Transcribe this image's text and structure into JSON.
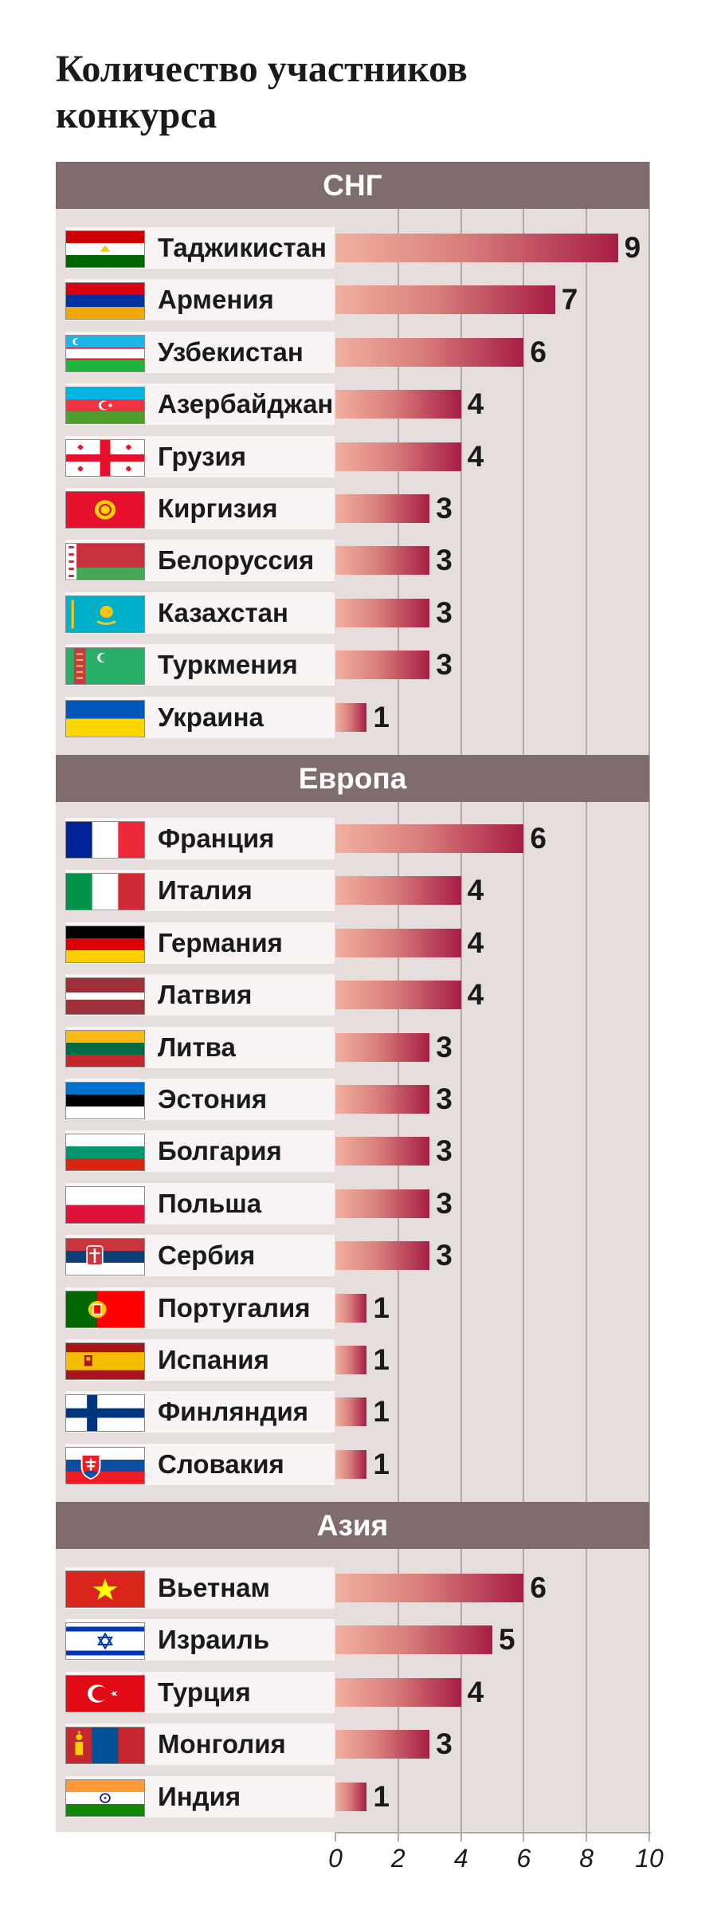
{
  "chart_data": {
    "type": "bar",
    "orientation": "horizontal",
    "title": "Количество участников конкурса",
    "xlim": [
      0,
      10
    ],
    "xticks": [
      "0",
      "2",
      "4",
      "6",
      "8",
      "10"
    ],
    "grid": true,
    "colors": {
      "bar_start": "#f1b09f",
      "bar_end": "#a71e44",
      "header": "#7f6d6d",
      "panel": "#e6dedd"
    },
    "groups": [
      {
        "name": "СНГ",
        "items": [
          {
            "country": "Таджикистан",
            "value": 9,
            "flag": "tajikistan-flag"
          },
          {
            "country": "Армения",
            "value": 7,
            "flag": "armenia-flag"
          },
          {
            "country": "Узбекистан",
            "value": 6,
            "flag": "uzbekistan-flag"
          },
          {
            "country": "Азербайджан",
            "value": 4,
            "flag": "azerbaijan-flag"
          },
          {
            "country": "Грузия",
            "value": 4,
            "flag": "georgia-flag"
          },
          {
            "country": "Киргизия",
            "value": 3,
            "flag": "kyrgyzstan-flag"
          },
          {
            "country": "Белоруссия",
            "value": 3,
            "flag": "belarus-flag"
          },
          {
            "country": "Казахстан",
            "value": 3,
            "flag": "kazakhstan-flag"
          },
          {
            "country": "Туркмения",
            "value": 3,
            "flag": "turkmenistan-flag"
          },
          {
            "country": "Украина",
            "value": 1,
            "flag": "ukraine-flag"
          }
        ]
      },
      {
        "name": "Европа",
        "items": [
          {
            "country": "Франция",
            "value": 6,
            "flag": "france-flag"
          },
          {
            "country": "Италия",
            "value": 4,
            "flag": "italy-flag"
          },
          {
            "country": "Германия",
            "value": 4,
            "flag": "germany-flag"
          },
          {
            "country": "Латвия",
            "value": 4,
            "flag": "latvia-flag"
          },
          {
            "country": "Литва",
            "value": 3,
            "flag": "lithuania-flag"
          },
          {
            "country": "Эстония",
            "value": 3,
            "flag": "estonia-flag"
          },
          {
            "country": "Болгария",
            "value": 3,
            "flag": "bulgaria-flag"
          },
          {
            "country": "Польша",
            "value": 3,
            "flag": "poland-flag"
          },
          {
            "country": "Сербия",
            "value": 3,
            "flag": "serbia-flag"
          },
          {
            "country": "Португалия",
            "value": 1,
            "flag": "portugal-flag"
          },
          {
            "country": "Испания",
            "value": 1,
            "flag": "spain-flag"
          },
          {
            "country": "Финляндия",
            "value": 1,
            "flag": "finland-flag"
          },
          {
            "country": "Словакия",
            "value": 1,
            "flag": "slovakia-flag"
          }
        ]
      },
      {
        "name": "Азия",
        "items": [
          {
            "country": "Вьетнам",
            "value": 6,
            "flag": "vietnam-flag"
          },
          {
            "country": "Израиль",
            "value": 5,
            "flag": "israel-flag"
          },
          {
            "country": "Турция",
            "value": 4,
            "flag": "turkey-flag"
          },
          {
            "country": "Монголия",
            "value": 3,
            "flag": "mongolia-flag"
          },
          {
            "country": "Индия",
            "value": 1,
            "flag": "india-flag"
          }
        ]
      }
    ]
  }
}
